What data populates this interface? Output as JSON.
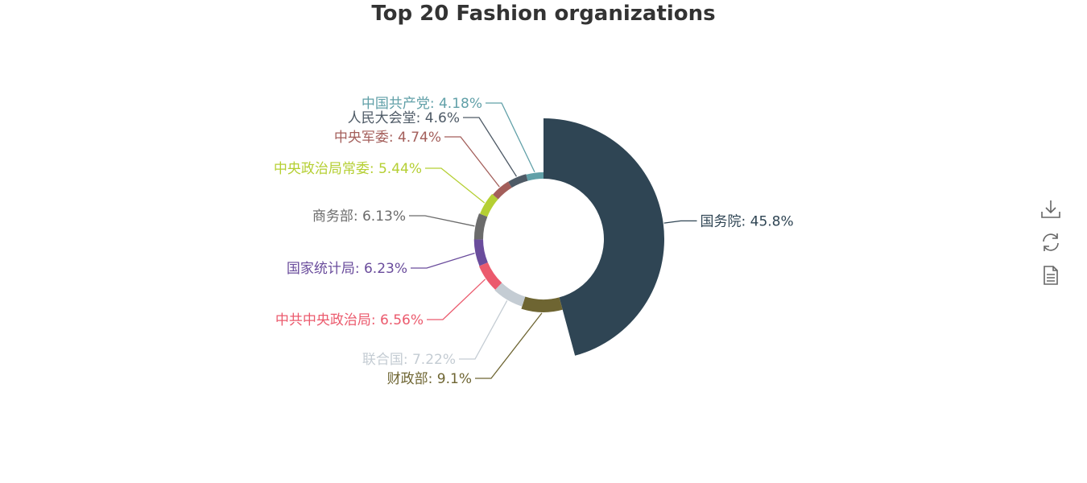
{
  "chart_data": {
    "type": "pie",
    "subtype": "rose-ring",
    "title": "Top 20 Fashion organizations",
    "series": [
      {
        "name": "国务院",
        "value": 45.8,
        "label": "国务院: 45.8%",
        "color": "#2f4554"
      },
      {
        "name": "财政部",
        "value": 9.1,
        "label": "财政部: 9.1%",
        "color": "#6e6532"
      },
      {
        "name": "联合国",
        "value": 7.22,
        "label": "联合国: 7.22%",
        "color": "#c4ccd3"
      },
      {
        "name": "中共中央政治局",
        "value": 6.56,
        "label": "中共中央政治局: 6.56%",
        "color": "#eb5a6d"
      },
      {
        "name": "国家统计局",
        "value": 6.23,
        "label": "国家统计局: 6.23%",
        "color": "#6a4c9c"
      },
      {
        "name": "商务部",
        "value": 6.13,
        "label": "商务部: 6.13%",
        "color": "#6b6b6b"
      },
      {
        "name": "中央政治局常委",
        "value": 5.44,
        "label": "中央政治局常委: 5.44%",
        "color": "#b5cf33"
      },
      {
        "name": "中央军委",
        "value": 4.74,
        "label": "中央军委: 4.74%",
        "color": "#a35e5a"
      },
      {
        "name": "人民大会堂",
        "value": 4.6,
        "label": "人民大会堂: 4.6%",
        "color": "#4e5a66"
      },
      {
        "name": "中国共产党",
        "value": 4.18,
        "label": "中国共产党: 4.18%",
        "color": "#61a0a8"
      }
    ]
  },
  "toolbox": {
    "icons": [
      "download-icon",
      "refresh-icon",
      "data-view-icon"
    ],
    "color": "#666666"
  }
}
